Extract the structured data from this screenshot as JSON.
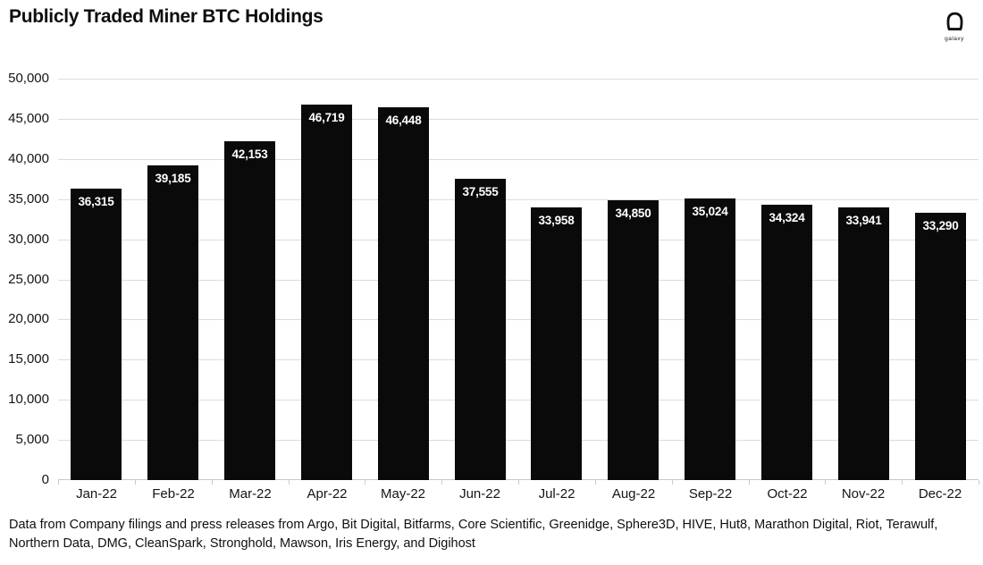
{
  "header": {
    "title": "Publicly Traded Miner BTC Holdings",
    "logo_label": "galaxy"
  },
  "chart_data": {
    "type": "bar",
    "title": "Publicly Traded Miner BTC Holdings",
    "categories": [
      "Jan-22",
      "Feb-22",
      "Mar-22",
      "Apr-22",
      "May-22",
      "Jun-22",
      "Jul-22",
      "Aug-22",
      "Sep-22",
      "Oct-22",
      "Nov-22",
      "Dec-22"
    ],
    "values": [
      36315,
      39185,
      42153,
      46719,
      46448,
      37555,
      33958,
      34850,
      35024,
      34324,
      33941,
      33290
    ],
    "value_labels": [
      "36,315",
      "39,185",
      "42,153",
      "46,719",
      "46,448",
      "37,555",
      "33,958",
      "34,850",
      "35,024",
      "34,324",
      "33,941",
      "33,290"
    ],
    "xlabel": "",
    "ylabel": "",
    "ylim": [
      0,
      50000
    ],
    "ytick_step": 5000,
    "ytick_labels": [
      "0",
      "5,000",
      "10,000",
      "15,000",
      "20,000",
      "25,000",
      "30,000",
      "35,000",
      "40,000",
      "45,000",
      "50,000"
    ],
    "grid": true,
    "legend": "none",
    "bar_color": "#0a0a0a",
    "bar_value_label_color": "#ffffff",
    "gridline_color": "#dcdcdc"
  },
  "footer": {
    "source_line1": "Data from Company filings and press releases from Argo, Bit Digital, Bitfarms, Core Scientific, Greenidge, Sphere3D, HIVE, Hut8, Marathon Digital, Riot, Terawulf,",
    "source_line2": "Northern Data, DMG, CleanSpark, Stronghold, Mawson, Iris Energy, and Digihost"
  }
}
